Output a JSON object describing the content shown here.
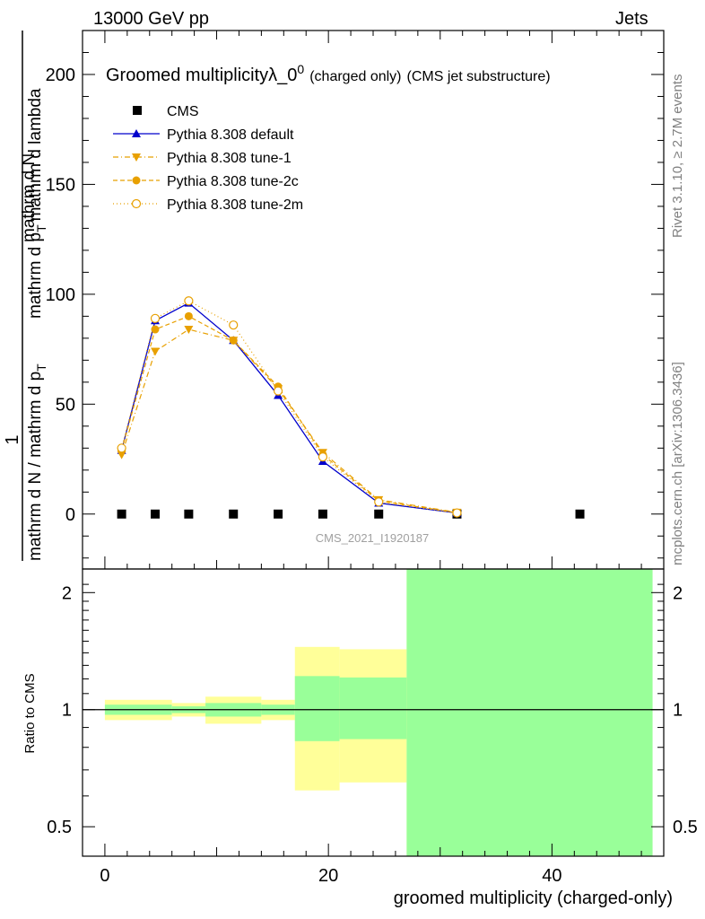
{
  "header": {
    "left": "13000 GeV pp",
    "right": "Jets"
  },
  "side_text": {
    "rivet": "Rivet 3.1.10, ≥ 2.7M events",
    "mcplots": "mcplots.cern.ch [arXiv:1306.3436]"
  },
  "watermark": "CMS_2021_I1920187",
  "colors": {
    "cms": "#000000",
    "default": "#0000cc",
    "tunes": "#e8a000",
    "band_inner": "#99ff99",
    "band_outer": "#ffff99"
  },
  "chart_data": [
    {
      "type": "line",
      "title": "Groomed multiplicityλ_0",
      "title_superscript": "0",
      "title_suffix_1": "(charged only)",
      "title_suffix_2": "(CMS jet substructure)",
      "ylabel_parts": [
        "1",
        "mathrm d N / mathrm d p",
        "T",
        "mathrm d N",
        "mathrm d p",
        "T",
        "mathrm d lambda"
      ],
      "ylim": [
        -25,
        220
      ],
      "xlim": [
        -2,
        50
      ],
      "yticks": [
        0,
        50,
        100,
        150,
        200
      ],
      "xticks": [
        0,
        20,
        40
      ],
      "legend_position": "top-left",
      "series": [
        {
          "name": "CMS",
          "marker": "square",
          "x": [
            1.5,
            4.5,
            7.5,
            11.5,
            15.5,
            19.5,
            24.5,
            31.5,
            42.5
          ],
          "y": [
            0,
            0,
            0,
            0,
            0,
            0,
            0,
            0,
            0
          ]
        },
        {
          "name": "Pythia 8.308 default",
          "marker": "triangle-up",
          "x": [
            1.5,
            4.5,
            7.5,
            11.5,
            15.5,
            19.5,
            24.5,
            31.5
          ],
          "y": [
            29,
            88,
            96,
            79,
            54,
            24,
            5,
            0.5
          ]
        },
        {
          "name": "Pythia 8.308 tune-1",
          "marker": "triangle-down",
          "x": [
            1.5,
            4.5,
            7.5,
            11.5,
            15.5,
            19.5,
            24.5,
            31.5
          ],
          "y": [
            27,
            74,
            84,
            79,
            57,
            28,
            6.5,
            0.8
          ]
        },
        {
          "name": "Pythia 8.308 tune-2c",
          "marker": "circle",
          "x": [
            1.5,
            4.5,
            7.5,
            11.5,
            15.5,
            19.5,
            24.5,
            31.5
          ],
          "y": [
            29,
            84,
            90,
            79,
            58,
            27,
            6,
            0.6
          ]
        },
        {
          "name": "Pythia 8.308 tune-2m",
          "marker": "circle-open",
          "x": [
            1.5,
            4.5,
            7.5,
            11.5,
            15.5,
            19.5,
            24.5,
            31.5
          ],
          "y": [
            30,
            89,
            97,
            86,
            56,
            26,
            5.5,
            0.5
          ]
        }
      ]
    },
    {
      "type": "area",
      "ylabel": "Ratio to CMS",
      "xlabel": "groomed multiplicity (charged-only)",
      "scale": "log",
      "ylim": [
        0.42,
        2.3
      ],
      "xlim": [
        -2,
        50
      ],
      "yticks": [
        0.5,
        1,
        2
      ],
      "xticks": [
        0,
        20,
        40
      ],
      "bins": [
        {
          "x": [
            0,
            6
          ],
          "inner": [
            0.97,
            1.03
          ],
          "outer": [
            0.94,
            1.06
          ]
        },
        {
          "x": [
            6,
            9
          ],
          "inner": [
            0.98,
            1.02
          ],
          "outer": [
            0.96,
            1.04
          ]
        },
        {
          "x": [
            9,
            14
          ],
          "inner": [
            0.96,
            1.04
          ],
          "outer": [
            0.92,
            1.08
          ]
        },
        {
          "x": [
            14,
            17
          ],
          "inner": [
            0.97,
            1.03
          ],
          "outer": [
            0.94,
            1.06
          ]
        },
        {
          "x": [
            17,
            21
          ],
          "inner": [
            0.83,
            1.22
          ],
          "outer": [
            0.62,
            1.45
          ]
        },
        {
          "x": [
            21,
            27
          ],
          "inner": [
            0.84,
            1.21
          ],
          "outer": [
            0.65,
            1.43
          ]
        },
        {
          "x": [
            27,
            49
          ],
          "inner": [
            0.4,
            2.4
          ],
          "outer": [
            0.4,
            2.4
          ]
        }
      ]
    }
  ]
}
